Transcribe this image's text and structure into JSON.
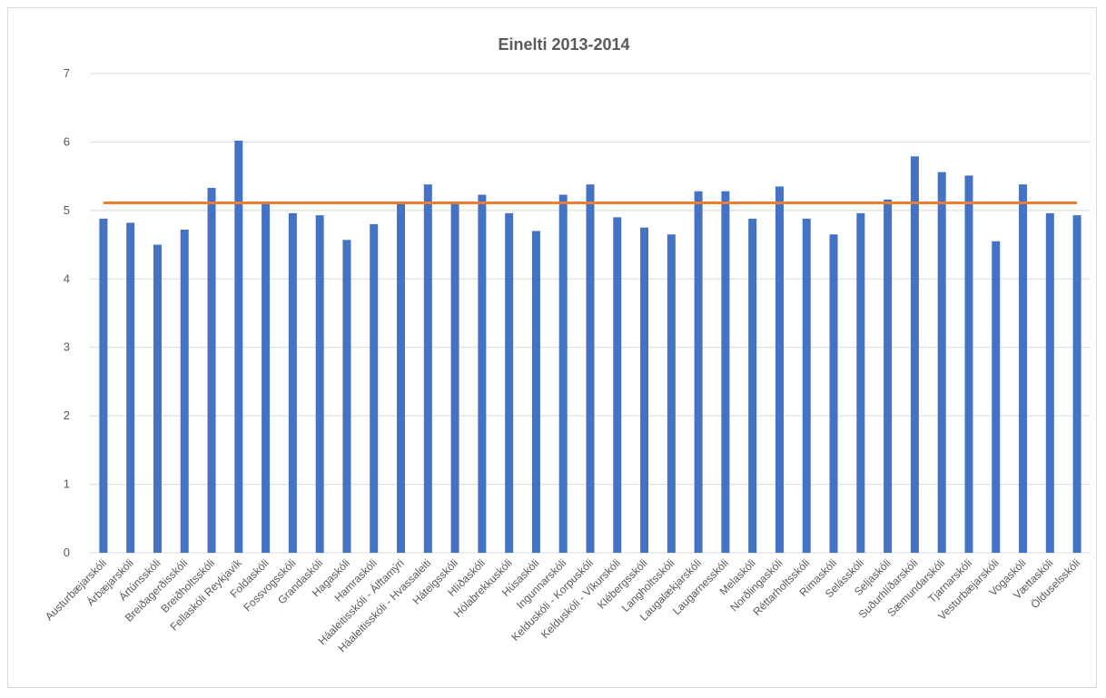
{
  "chart_data": {
    "type": "bar",
    "title": "Einelti 2013-2014",
    "categories": [
      "Austurbæjarskóli",
      "Árbæjarskóli",
      "Ártúnsskóli",
      "Breiðagerðisskóli",
      "Breiðholtsskóli",
      "Fellaskóli Reykjavík",
      "Foldaskóli",
      "Fossvogsskóli",
      "Grandaskóli",
      "Hagaskóli",
      "Hamraskóli",
      "Háaleitisskóli - Álftamýri",
      "Háaleitisskóli - Hvassaleiti",
      "Háteigsskóli",
      "Hlíðaskóli",
      "Hólabrekkuskóli",
      "Húsaskóli",
      "Ingunnarskóli",
      "Kelduskóli - Korpuskóli",
      "Kelduskóli - Víkurskóli",
      "Klébergsskóli",
      "Langholtsskóli",
      "Laugalækjarskóli",
      "Laugarnesskóli",
      "Melaskóli",
      "Norðlingaskóli",
      "Réttarholtsskóli",
      "Rimaskóli",
      "Selásskóli",
      "Seljaskóli",
      "Suðurhlíðarskóli",
      "Sæmundarskóli",
      "Tjarnarskóli",
      "Vesturbæjarskóli",
      "Vogaskóli",
      "Vættaskóli",
      "Ölduselsskóli"
    ],
    "series": [
      {
        "type": "bar",
        "color": "#4472c4",
        "values": [
          4.88,
          4.82,
          4.5,
          4.72,
          5.33,
          6.02,
          5.13,
          4.96,
          4.93,
          4.57,
          4.8,
          5.1,
          5.38,
          5.1,
          5.23,
          4.96,
          4.7,
          5.23,
          5.38,
          4.9,
          4.75,
          4.65,
          5.28,
          5.28,
          4.88,
          5.35,
          4.88,
          4.65,
          4.96,
          5.16,
          5.79,
          5.56,
          5.51,
          4.55,
          5.38,
          4.96,
          4.93
        ]
      },
      {
        "type": "line",
        "color": "#ed7d31",
        "value": 5.11
      }
    ],
    "ylim": [
      0,
      7
    ],
    "yticks": [
      0,
      1,
      2,
      3,
      4,
      5,
      6,
      7
    ],
    "grid": true,
    "xlabel": "",
    "ylabel": ""
  }
}
